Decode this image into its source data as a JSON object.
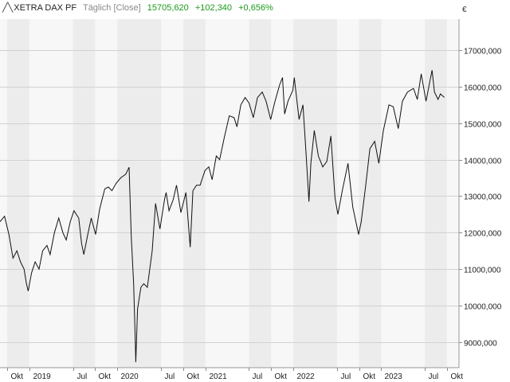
{
  "header": {
    "icon": "line-chart-icon",
    "instrument": "XETRA DAX PF",
    "frequency": "Täglich [Close]",
    "last": "15705,620",
    "change": "+102,340",
    "change_pct": "+0,656%",
    "change_color": "#1a9a1a"
  },
  "chart_data": {
    "type": "line",
    "title": "",
    "xlabel": "",
    "ylabel": "",
    "unit_label": "€",
    "ylim": [
      8300,
      17850
    ],
    "xlim": [
      "2018-09-01",
      "2023-11-20"
    ],
    "grid": true,
    "y_ticks": [
      {
        "value": 9000,
        "label": "9000,000"
      },
      {
        "value": 10000,
        "label": "10000,000"
      },
      {
        "value": 11000,
        "label": "11000,000"
      },
      {
        "value": 12000,
        "label": "12000,000"
      },
      {
        "value": 13000,
        "label": "13000,000"
      },
      {
        "value": 14000,
        "label": "14000,000"
      },
      {
        "value": 15000,
        "label": "15000,000"
      },
      {
        "value": 16000,
        "label": "16000,000"
      },
      {
        "value": 17000,
        "label": "17000,000"
      }
    ],
    "x_ticks": [
      {
        "date": "2018-10-01",
        "label": "Okt"
      },
      {
        "date": "2019-01-01",
        "label": "2019"
      },
      {
        "date": "2019-07-01",
        "label": "Jul"
      },
      {
        "date": "2019-10-01",
        "label": "Okt"
      },
      {
        "date": "2020-01-01",
        "label": "2020"
      },
      {
        "date": "2020-07-01",
        "label": "Jul"
      },
      {
        "date": "2020-10-01",
        "label": "Okt"
      },
      {
        "date": "2021-01-01",
        "label": "2021"
      },
      {
        "date": "2021-07-01",
        "label": "Jul"
      },
      {
        "date": "2021-10-01",
        "label": "Okt"
      },
      {
        "date": "2022-01-01",
        "label": "2022"
      },
      {
        "date": "2022-07-01",
        "label": "Jul"
      },
      {
        "date": "2022-10-01",
        "label": "Okt"
      },
      {
        "date": "2023-01-01",
        "label": "2023"
      },
      {
        "date": "2023-07-01",
        "label": "Jul"
      },
      {
        "date": "2023-10-01",
        "label": "Okt"
      }
    ],
    "series": [
      {
        "color": "#111111",
        "points": [
          [
            "2018-09-01",
            12300
          ],
          [
            "2018-09-20",
            12450
          ],
          [
            "2018-10-08",
            11950
          ],
          [
            "2018-10-25",
            11300
          ],
          [
            "2018-11-10",
            11500
          ],
          [
            "2018-11-25",
            11200
          ],
          [
            "2018-12-10",
            11000
          ],
          [
            "2018-12-20",
            10600
          ],
          [
            "2018-12-27",
            10400
          ],
          [
            "2019-01-10",
            10900
          ],
          [
            "2019-01-25",
            11200
          ],
          [
            "2019-02-10",
            11000
          ],
          [
            "2019-02-25",
            11500
          ],
          [
            "2019-03-15",
            11650
          ],
          [
            "2019-03-28",
            11400
          ],
          [
            "2019-04-15",
            12000
          ],
          [
            "2019-05-03",
            12400
          ],
          [
            "2019-05-20",
            12000
          ],
          [
            "2019-06-03",
            11800
          ],
          [
            "2019-06-20",
            12300
          ],
          [
            "2019-07-05",
            12600
          ],
          [
            "2019-07-25",
            12400
          ],
          [
            "2019-08-06",
            11700
          ],
          [
            "2019-08-15",
            11400
          ],
          [
            "2019-08-30",
            11900
          ],
          [
            "2019-09-15",
            12400
          ],
          [
            "2019-10-03",
            11950
          ],
          [
            "2019-10-20",
            12650
          ],
          [
            "2019-11-10",
            13200
          ],
          [
            "2019-11-25",
            13250
          ],
          [
            "2019-12-10",
            13150
          ],
          [
            "2019-12-27",
            13350
          ],
          [
            "2020-01-15",
            13500
          ],
          [
            "2020-02-05",
            13600
          ],
          [
            "2020-02-19",
            13790
          ],
          [
            "2020-02-28",
            11900
          ],
          [
            "2020-03-09",
            10600
          ],
          [
            "2020-03-16",
            9000
          ],
          [
            "2020-03-18",
            8450
          ],
          [
            "2020-03-25",
            9900
          ],
          [
            "2020-04-08",
            10500
          ],
          [
            "2020-04-20",
            10600
          ],
          [
            "2020-05-05",
            10500
          ],
          [
            "2020-05-25",
            11500
          ],
          [
            "2020-06-08",
            12800
          ],
          [
            "2020-06-26",
            12100
          ],
          [
            "2020-07-15",
            12900
          ],
          [
            "2020-07-22",
            13100
          ],
          [
            "2020-08-03",
            12600
          ],
          [
            "2020-08-20",
            12900
          ],
          [
            "2020-09-03",
            13300
          ],
          [
            "2020-09-21",
            12550
          ],
          [
            "2020-10-12",
            13100
          ],
          [
            "2020-10-30",
            11600
          ],
          [
            "2020-11-10",
            13150
          ],
          [
            "2020-11-25",
            13300
          ],
          [
            "2020-12-10",
            13300
          ],
          [
            "2020-12-30",
            13700
          ],
          [
            "2021-01-15",
            13800
          ],
          [
            "2021-01-29",
            13450
          ],
          [
            "2021-02-15",
            14100
          ],
          [
            "2021-03-01",
            14000
          ],
          [
            "2021-03-20",
            14600
          ],
          [
            "2021-04-10",
            15200
          ],
          [
            "2021-04-30",
            15150
          ],
          [
            "2021-05-12",
            14900
          ],
          [
            "2021-05-28",
            15500
          ],
          [
            "2021-06-15",
            15700
          ],
          [
            "2021-07-01",
            15550
          ],
          [
            "2021-07-19",
            15150
          ],
          [
            "2021-08-05",
            15700
          ],
          [
            "2021-08-25",
            15850
          ],
          [
            "2021-09-10",
            15600
          ],
          [
            "2021-09-29",
            15100
          ],
          [
            "2021-10-15",
            15550
          ],
          [
            "2021-11-05",
            16050
          ],
          [
            "2021-11-17",
            16250
          ],
          [
            "2021-11-26",
            15250
          ],
          [
            "2021-12-10",
            15600
          ],
          [
            "2021-12-30",
            15900
          ],
          [
            "2022-01-05",
            16250
          ],
          [
            "2022-01-25",
            15100
          ],
          [
            "2022-02-10",
            15500
          ],
          [
            "2022-02-24",
            14050
          ],
          [
            "2022-03-07",
            12850
          ],
          [
            "2022-03-15",
            13900
          ],
          [
            "2022-03-29",
            14800
          ],
          [
            "2022-04-15",
            14100
          ],
          [
            "2022-05-03",
            13800
          ],
          [
            "2022-05-20",
            13950
          ],
          [
            "2022-06-06",
            14650
          ],
          [
            "2022-06-23",
            12950
          ],
          [
            "2022-07-05",
            12500
          ],
          [
            "2022-07-25",
            13200
          ],
          [
            "2022-08-16",
            13900
          ],
          [
            "2022-09-05",
            12700
          ],
          [
            "2022-09-29",
            11950
          ],
          [
            "2022-10-10",
            12300
          ],
          [
            "2022-10-28",
            13250
          ],
          [
            "2022-11-15",
            14300
          ],
          [
            "2022-12-05",
            14500
          ],
          [
            "2022-12-22",
            13900
          ],
          [
            "2023-01-10",
            14800
          ],
          [
            "2023-02-02",
            15500
          ],
          [
            "2023-02-20",
            15450
          ],
          [
            "2023-03-13",
            14850
          ],
          [
            "2023-03-30",
            15600
          ],
          [
            "2023-04-20",
            15850
          ],
          [
            "2023-05-15",
            15950
          ],
          [
            "2023-05-31",
            15650
          ],
          [
            "2023-06-16",
            16350
          ],
          [
            "2023-07-06",
            15600
          ],
          [
            "2023-07-31",
            16450
          ],
          [
            "2023-08-10",
            15850
          ],
          [
            "2023-08-25",
            15650
          ],
          [
            "2023-09-04",
            15800
          ],
          [
            "2023-09-20",
            15705
          ]
        ]
      }
    ]
  }
}
